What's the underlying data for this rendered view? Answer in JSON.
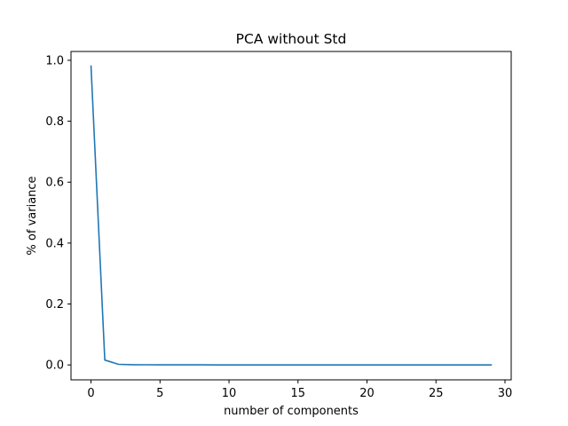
{
  "chart_data": {
    "type": "line",
    "title": "PCA without Std",
    "xlabel": "number of components",
    "ylabel": "% of variance",
    "xlim": [
      -1.45,
      30.45
    ],
    "ylim": [
      -0.049,
      1.029
    ],
    "xticks": [
      0,
      5,
      10,
      15,
      20,
      25,
      30
    ],
    "xtick_labels": [
      "0",
      "5",
      "10",
      "15",
      "20",
      "25",
      "30"
    ],
    "yticks": [
      0.0,
      0.2,
      0.4,
      0.6,
      0.8,
      1.0
    ],
    "ytick_labels": [
      "0.0",
      "0.2",
      "0.4",
      "0.6",
      "0.8",
      "1.0"
    ],
    "grid": false,
    "series": [
      {
        "color": "#1f77b4",
        "x": [
          0,
          1,
          2,
          3,
          4,
          5,
          6,
          7,
          8,
          9,
          10,
          11,
          12,
          13,
          14,
          15,
          16,
          17,
          18,
          19,
          20,
          21,
          22,
          23,
          24,
          25,
          26,
          27,
          28,
          29
        ],
        "values": [
          0.981,
          0.016,
          0.002,
          0.0008,
          0.0005,
          0.0004,
          0.0003,
          0.0002,
          0.0002,
          0.0001,
          0.0001,
          0.0001,
          0.0001,
          0.0001,
          0.0,
          0.0,
          0.0,
          0.0,
          0.0,
          0.0,
          0.0,
          0.0,
          0.0,
          0.0,
          0.0,
          0.0,
          0.0,
          0.0,
          0.0,
          0.0
        ]
      }
    ]
  }
}
